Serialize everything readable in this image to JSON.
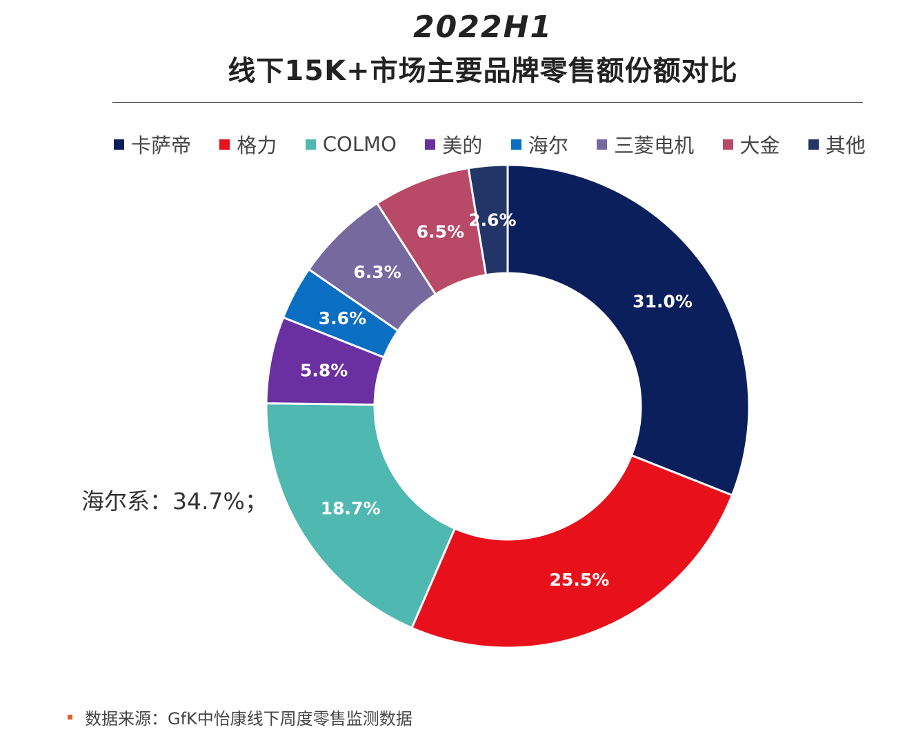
{
  "chart_data": {
    "type": "pie",
    "style": "donut",
    "title": "2022H1",
    "subtitle": "线下15K+市场主要品牌零售额份额对比",
    "categories": [
      "卡萨帝",
      "格力",
      "COLMO",
      "美的",
      "海尔",
      "三菱电机",
      "大金",
      "其他"
    ],
    "values": [
      31.0,
      25.5,
      18.7,
      5.8,
      3.6,
      6.3,
      6.5,
      2.6
    ],
    "data_labels": [
      "31.0%",
      "25.5%",
      "18.7%",
      "5.8%",
      "3.6%",
      "6.3%",
      "6.5%",
      "2.6%"
    ],
    "colors": [
      "#0b1f5c",
      "#e8101a",
      "#4fb8b0",
      "#6a2fa0",
      "#0a6ec2",
      "#76699e",
      "#b84a68",
      "#223566"
    ],
    "legend_placement": "top",
    "annotation": "海尔系：34.7%；",
    "source": "数据来源：GfK中怡康线下周度零售监测数据"
  }
}
